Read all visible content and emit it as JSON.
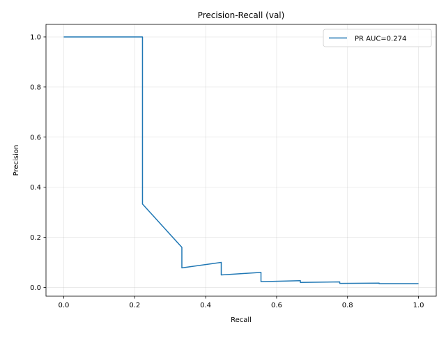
{
  "chart_data": {
    "type": "line",
    "title": "Precision-Recall (val)",
    "xlabel": "Recall",
    "ylabel": "Precision",
    "xlim": [
      -0.05,
      1.05
    ],
    "ylim": [
      -0.035,
      1.05
    ],
    "xticks": [
      0.0,
      0.2,
      0.4,
      0.6,
      0.8,
      1.0
    ],
    "yticks": [
      0.0,
      0.2,
      0.4,
      0.6,
      0.8,
      1.0
    ],
    "xtick_labels": [
      "0.0",
      "0.2",
      "0.4",
      "0.6",
      "0.8",
      "1.0"
    ],
    "ytick_labels": [
      "0.0",
      "0.2",
      "0.4",
      "0.6",
      "0.8",
      "1.0"
    ],
    "grid": true,
    "legend_position": "upper right",
    "series": [
      {
        "name": "PR AUC=0.274",
        "color": "#1f77b4",
        "x": [
          0.0,
          0.222,
          0.222,
          0.222,
          0.333,
          0.333,
          0.444,
          0.444,
          0.556,
          0.556,
          0.667,
          0.667,
          0.778,
          0.778,
          0.889,
          0.889,
          1.0
        ],
        "y": [
          1.0,
          1.0,
          0.5,
          0.333,
          0.16,
          0.078,
          0.1,
          0.05,
          0.06,
          0.023,
          0.027,
          0.02,
          0.022,
          0.016,
          0.017,
          0.015,
          0.015
        ]
      }
    ]
  }
}
